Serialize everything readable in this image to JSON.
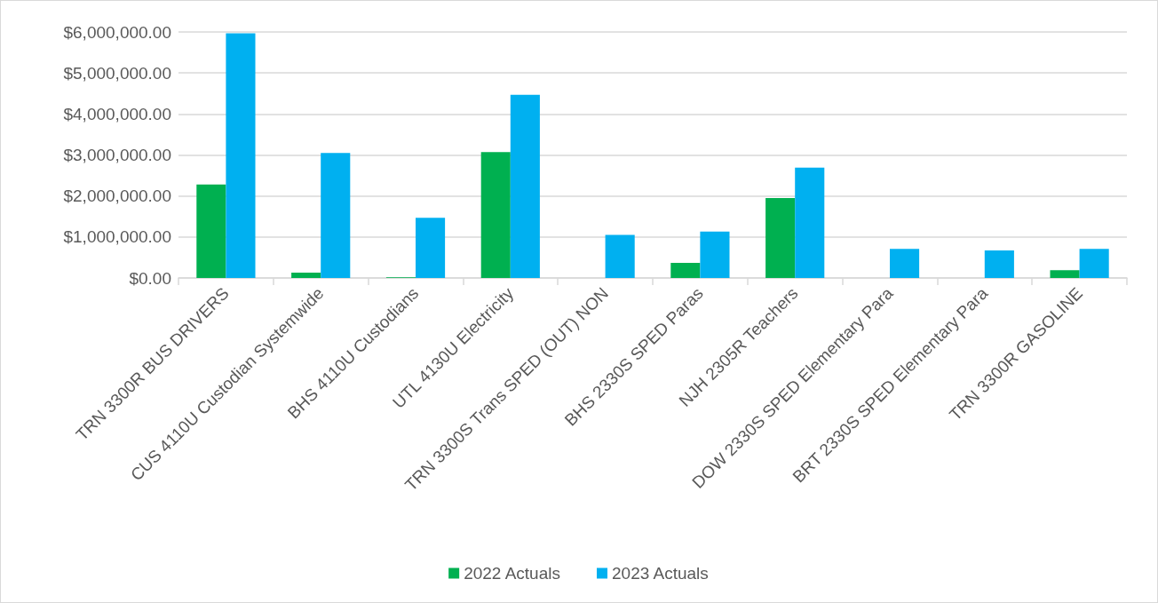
{
  "chart_data": {
    "type": "bar",
    "categories": [
      "TRN 3300R BUS DRIVERS",
      "CUS 4110U Custodian Systemwide",
      "BHS 4110U Custodians",
      "UTL 4130U Electricity",
      "TRN 3300S Trans SPED (OUT) NON",
      "BHS 2330S SPED Paras",
      "NJH 2305R Teachers",
      "DOW 2330S SPED Elementary Para",
      "BRT 2330S SPED Elementary Para",
      "TRN 3300R GASOLINE"
    ],
    "series": [
      {
        "name": "2022 Actuals",
        "color": "#00b050",
        "values": [
          2280000,
          130000,
          15000,
          3070000,
          0,
          370000,
          1950000,
          0,
          0,
          190000
        ]
      },
      {
        "name": "2023 Actuals",
        "color": "#00b0f0",
        "values": [
          5970000,
          3050000,
          1470000,
          4470000,
          1050000,
          1130000,
          2690000,
          710000,
          670000,
          710000
        ]
      }
    ],
    "ylim": [
      0,
      6000000
    ],
    "yticks": [
      {
        "value": 0,
        "label": "$0.00"
      },
      {
        "value": 1000000,
        "label": "$1,000,000.00"
      },
      {
        "value": 2000000,
        "label": "$2,000,000.00"
      },
      {
        "value": 3000000,
        "label": "$3,000,000.00"
      },
      {
        "value": 4000000,
        "label": "$4,000,000.00"
      },
      {
        "value": 5000000,
        "label": "$5,000,000.00"
      },
      {
        "value": 6000000,
        "label": "$6,000,000.00"
      }
    ],
    "grid": "y",
    "legend": "bottom"
  }
}
